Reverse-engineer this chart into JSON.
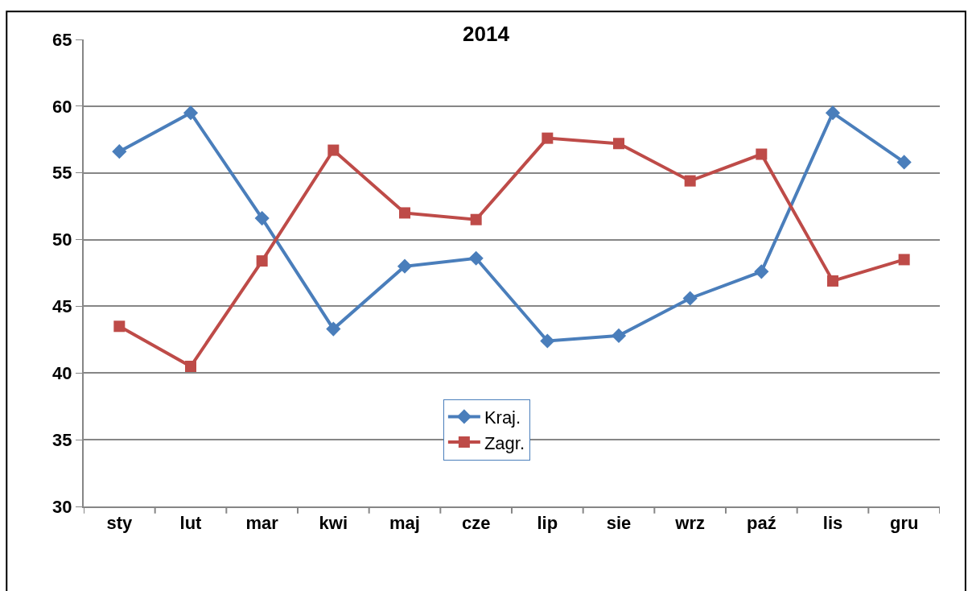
{
  "chart_data": {
    "type": "line",
    "title": "2014",
    "categories": [
      "sty",
      "lut",
      "mar",
      "kwi",
      "maj",
      "cze",
      "lip",
      "sie",
      "wrz",
      "paź",
      "lis",
      "gru"
    ],
    "series": [
      {
        "name": "Kraj.",
        "color": "#4a7ebb",
        "marker": "diamond",
        "values": [
          56.6,
          59.5,
          51.6,
          43.3,
          48.0,
          48.6,
          42.4,
          42.8,
          45.6,
          47.6,
          59.5,
          55.8
        ]
      },
      {
        "name": "Zagr.",
        "color": "#be4b48",
        "marker": "square",
        "values": [
          43.5,
          40.5,
          48.4,
          56.7,
          52.0,
          51.5,
          57.6,
          57.2,
          54.4,
          56.4,
          46.9,
          48.5
        ]
      }
    ],
    "ylim": [
      30,
      65
    ],
    "yticks": [
      30,
      35,
      40,
      45,
      50,
      55,
      60,
      65
    ],
    "grid": "y",
    "legend": "bottom"
  }
}
